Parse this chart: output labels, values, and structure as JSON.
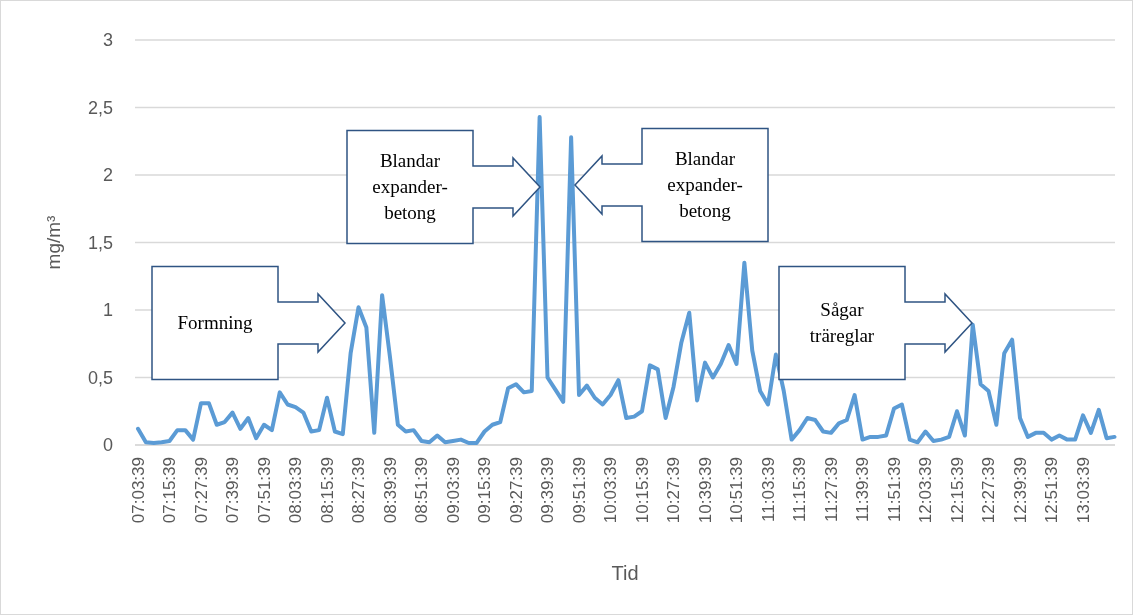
{
  "chart_data": {
    "type": "line",
    "xlabel": "Tid",
    "ylabel": "mg/m³",
    "ylim": [
      0,
      3
    ],
    "yticks": [
      0,
      {
        "value": 0.5,
        "label": "0,5"
      },
      1,
      {
        "value": 1.5,
        "label": "1,5"
      },
      2,
      {
        "value": 2.5,
        "label": "2,5"
      },
      3
    ],
    "categories": [
      "07:03:39",
      null,
      null,
      null,
      "07:15:39",
      null,
      null,
      null,
      "07:27:39",
      null,
      null,
      null,
      "07:39:39",
      null,
      null,
      null,
      "07:51:39",
      null,
      null,
      null,
      "08:03:39",
      null,
      null,
      null,
      "08:15:39",
      null,
      null,
      null,
      "08:27:39",
      null,
      null,
      null,
      "08:39:39",
      null,
      null,
      null,
      "08:51:39",
      null,
      null,
      null,
      "09:03:39",
      null,
      null,
      null,
      "09:15:39",
      null,
      null,
      null,
      "09:27:39",
      null,
      null,
      null,
      "09:39:39",
      null,
      null,
      null,
      "09:51:39",
      null,
      null,
      null,
      "10:03:39",
      null,
      null,
      null,
      "10:15:39",
      null,
      null,
      null,
      "10:27:39",
      null,
      null,
      null,
      "10:39:39",
      null,
      null,
      null,
      "10:51:39",
      null,
      null,
      null,
      "11:03:39",
      null,
      null,
      null,
      "11:15:39",
      null,
      null,
      null,
      "11:27:39",
      null,
      null,
      null,
      "11:39:39",
      null,
      null,
      null,
      "11:51:39",
      null,
      null,
      null,
      "12:03:39",
      null,
      null,
      null,
      "12:15:39",
      null,
      null,
      null,
      "12:27:39",
      null,
      null,
      null,
      "12:39:39",
      null,
      null,
      null,
      "12:51:39",
      null,
      null,
      null,
      "13:03:39",
      null,
      null,
      null,
      null
    ],
    "grid": "y",
    "marker": "none",
    "line_style": "solid",
    "series": [
      {
        "color": "#5b9bd5",
        "values": [
          0.12,
          0.02,
          0.015,
          0.02,
          0.03,
          0.11,
          0.11,
          0.04,
          0.31,
          0.31,
          0.15,
          0.17,
          0.24,
          0.12,
          0.2,
          0.05,
          0.15,
          0.11,
          0.39,
          0.3,
          0.28,
          0.24,
          0.1,
          0.11,
          0.35,
          0.1,
          0.08,
          0.68,
          1.02,
          0.87,
          0.09,
          1.11,
          0.65,
          0.15,
          0.1,
          0.11,
          0.03,
          0.02,
          0.07,
          0.02,
          0.03,
          0.04,
          0.015,
          0.015,
          0.1,
          0.15,
          0.17,
          0.42,
          0.45,
          0.39,
          0.4,
          2.43,
          0.5,
          0.41,
          0.32,
          2.28,
          0.37,
          0.44,
          0.35,
          0.3,
          0.37,
          0.48,
          0.2,
          0.21,
          0.25,
          0.59,
          0.56,
          0.2,
          0.43,
          0.76,
          0.98,
          0.33,
          0.61,
          0.5,
          0.6,
          0.74,
          0.6,
          1.35,
          0.7,
          0.4,
          0.3,
          0.67,
          0.4,
          0.04,
          0.11,
          0.2,
          0.185,
          0.1,
          0.09,
          0.16,
          0.185,
          0.37,
          0.04,
          0.06,
          0.06,
          0.07,
          0.27,
          0.3,
          0.04,
          0.02,
          0.1,
          0.03,
          0.04,
          0.06,
          0.25,
          0.07,
          0.89,
          0.45,
          0.4,
          0.15,
          0.68,
          0.78,
          0.2,
          0.06,
          0.09,
          0.09,
          0.04,
          0.07,
          0.04,
          0.04,
          0.22,
          0.09,
          0.26,
          0.05,
          0.06
        ]
      }
    ],
    "annotations": [
      "Formning",
      "Blandar\nexpander-\nbetong",
      "Blandar\nexpander-\nbetong",
      "Sågar\nträreglar"
    ]
  }
}
